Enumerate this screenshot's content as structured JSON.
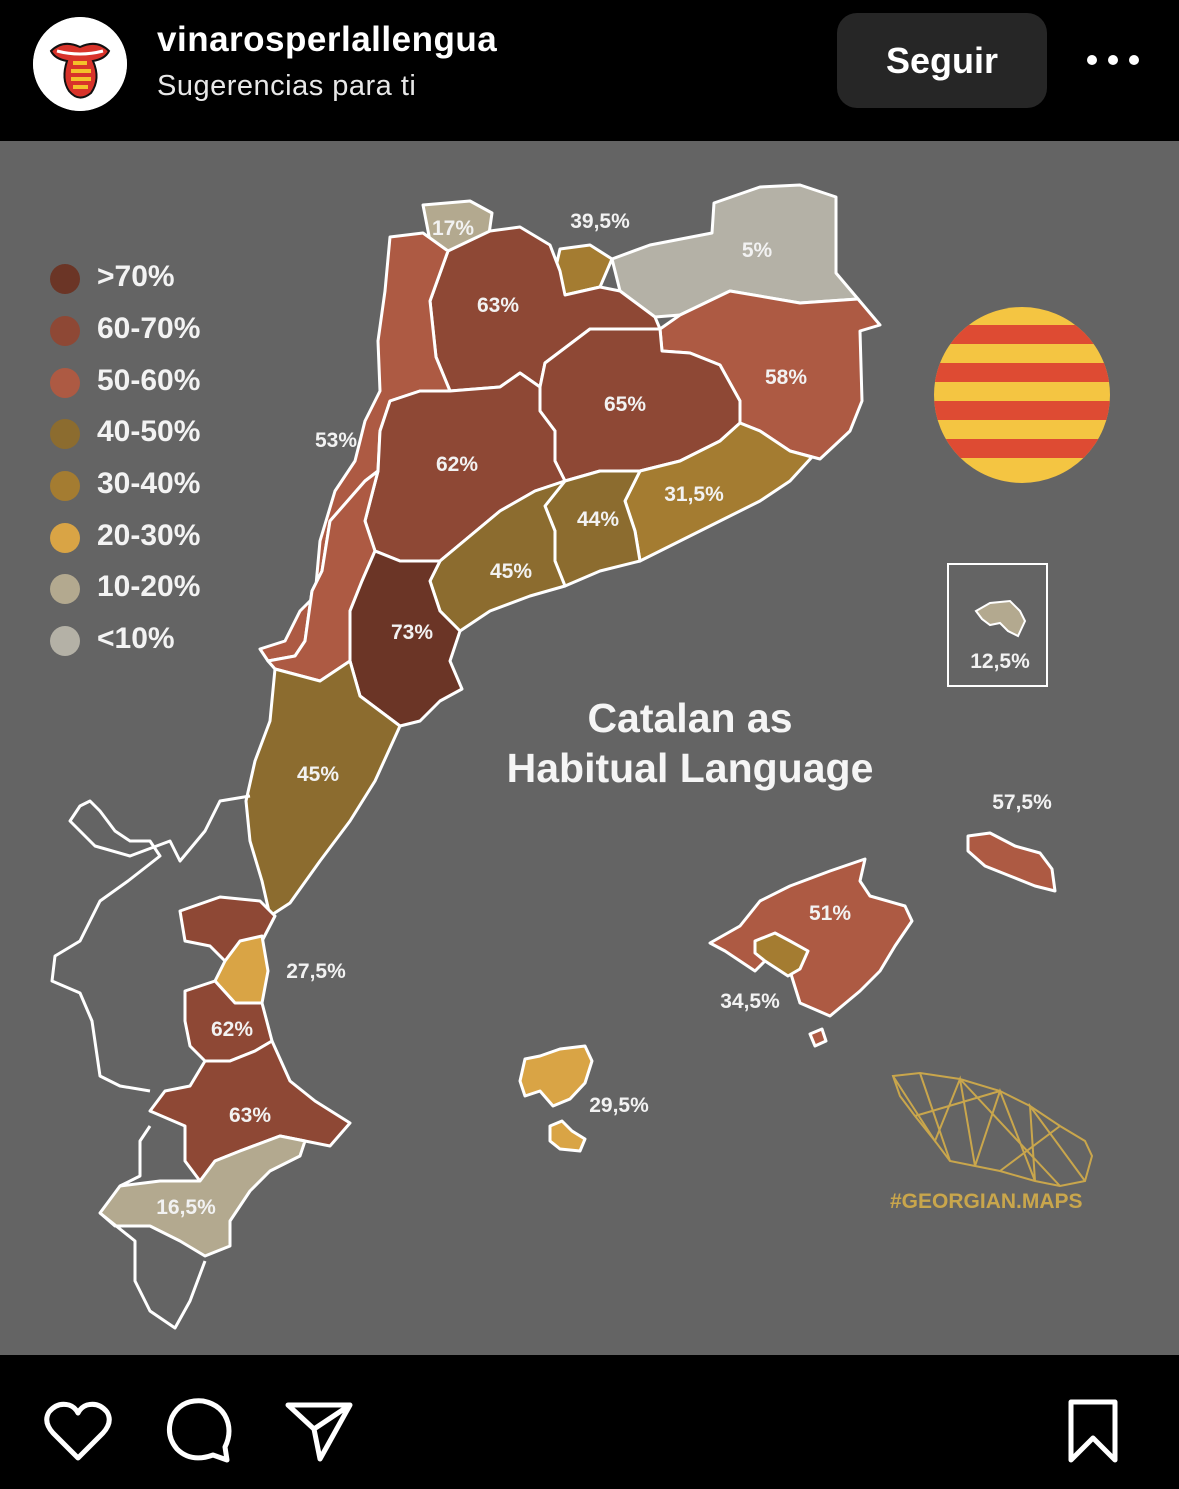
{
  "header": {
    "username": "vinarosperlallengua",
    "subtitle": "Sugerencias para ti",
    "follow_label": "Seguir"
  },
  "post": {
    "title_line1": "Catalan as",
    "title_line2": "Habitual Language",
    "brand": "#GEORGIAN.MAPS",
    "legend": [
      {
        "label": ">70%",
        "color": "#6b3526"
      },
      {
        "label": "60-70%",
        "color": "#8e4835"
      },
      {
        "label": "50-60%",
        "color": "#ad5a43"
      },
      {
        "label": "40-50%",
        "color": "#8c6c2f"
      },
      {
        "label": "30-40%",
        "color": "#a47c31"
      },
      {
        "label": "20-30%",
        "color": "#d9a445"
      },
      {
        "label": "10-20%",
        "color": "#b3a98f"
      },
      {
        "label": "<10%",
        "color": "#b4b1a6"
      }
    ],
    "regions": [
      {
        "name": "val-d-aran",
        "value": "17%"
      },
      {
        "name": "cerdanya",
        "value": "39,5%"
      },
      {
        "name": "ripolles-garrotxa",
        "value": "5%"
      },
      {
        "name": "alt-pirineu",
        "value": "63%"
      },
      {
        "name": "franja-nord",
        "value": "53%"
      },
      {
        "name": "girona",
        "value": "58%"
      },
      {
        "name": "catalunya-central",
        "value": "65%"
      },
      {
        "name": "lleida",
        "value": "62%"
      },
      {
        "name": "barcelona-coast",
        "value": "31,5%"
      },
      {
        "name": "vallès",
        "value": "44%"
      },
      {
        "name": "camp-tarragona",
        "value": "45%"
      },
      {
        "name": "terres-ebre",
        "value": "73%"
      },
      {
        "name": "castello",
        "value": "45%"
      },
      {
        "name": "valencia-city",
        "value": "27,5%"
      },
      {
        "name": "valencia-south",
        "value": "62%"
      },
      {
        "name": "alacant-north",
        "value": "63%"
      },
      {
        "name": "alacant-south",
        "value": "16,5%"
      },
      {
        "name": "alguer",
        "value": "12,5%"
      },
      {
        "name": "menorca",
        "value": "57,5%"
      },
      {
        "name": "mallorca",
        "value": "51%"
      },
      {
        "name": "palma",
        "value": "34,5%"
      },
      {
        "name": "eivissa",
        "value": "29,5%"
      }
    ]
  }
}
